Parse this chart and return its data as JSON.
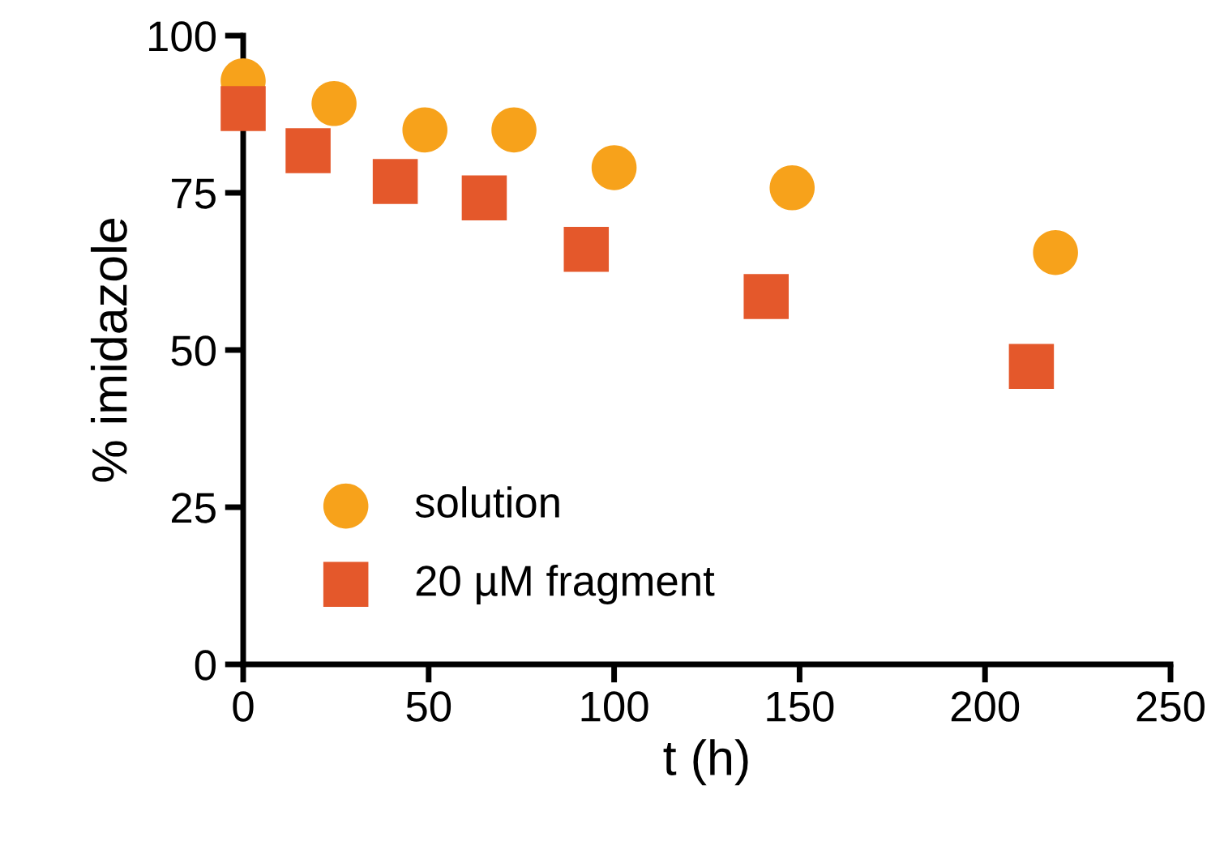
{
  "chart_data": {
    "type": "scatter",
    "xlabel": "t (h)",
    "ylabel": "% imidazole",
    "xlim": [
      0,
      250
    ],
    "ylim": [
      0,
      100
    ],
    "xticks": [
      0,
      50,
      100,
      150,
      200,
      250
    ],
    "yticks": [
      0,
      25,
      50,
      75,
      100
    ],
    "grid": false,
    "legend": "bottom left",
    "series": [
      {
        "name": "solution",
        "color": "#f7a21b",
        "marker": "circle",
        "x": [
          0,
          24.5,
          49,
          73,
          100,
          148,
          219
        ],
        "values": [
          92.8,
          89.2,
          85,
          85,
          79,
          75.8,
          65.5
        ]
      },
      {
        "name": "20 µM fragment",
        "color": "#e4582b",
        "marker": "square",
        "x": [
          0,
          17.5,
          41,
          65,
          92.5,
          141,
          212.5
        ],
        "values": [
          88.4,
          81.7,
          76.8,
          74.2,
          66,
          58.5,
          47.4
        ]
      }
    ]
  }
}
